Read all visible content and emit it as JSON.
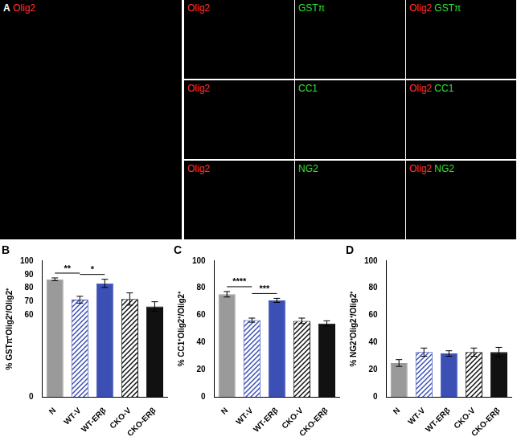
{
  "panel_a": {
    "label": "A",
    "overview": "Olig2",
    "rows": [
      [
        "Olig2",
        "GSTπ"
      ],
      [
        "Olig2",
        "CC1"
      ],
      [
        "Olig2",
        "NG2"
      ]
    ]
  },
  "chart_data": [
    {
      "type": "bar",
      "title": "B",
      "ylabel": "% GSTπ⁺Olig2⁺/Olig2⁺",
      "categories": [
        "N",
        "WT-V",
        "WT-ERβ",
        "CKO-V",
        "CKO-ERβ"
      ],
      "values": [
        86.5,
        71.5,
        83.5,
        72,
        66.5
      ],
      "errors": [
        1,
        2.5,
        3,
        4.5,
        3.5
      ],
      "colors": [
        "#9a9a9a",
        "#3b4fb5",
        "#3b4fb5",
        "#111111",
        "#111111"
      ],
      "annotations": [
        {
          "text": "**",
          "between": [
            "N",
            "WT-V"
          ]
        },
        {
          "text": "*",
          "between": [
            "WT-V",
            "WT-ERβ"
          ]
        }
      ],
      "ylim": [
        0,
        100
      ],
      "yticks": [
        0,
        60,
        70,
        80,
        90,
        100
      ],
      "grid": false
    },
    {
      "type": "bar",
      "title": "C",
      "ylabel": "% CC1⁺Olig2⁺/Olig2⁺",
      "categories": [
        "N",
        "WT-V",
        "WT-ERβ",
        "CKO-V",
        "CKO-ERβ"
      ],
      "values": [
        75.5,
        56.5,
        71,
        56,
        54
      ],
      "errors": [
        2,
        1.5,
        1.5,
        2,
        2
      ],
      "colors": [
        "#9a9a9a",
        "#3b4fb5",
        "#3b4fb5",
        "#111111",
        "#111111"
      ],
      "annotations": [
        {
          "text": "****",
          "between": [
            "N",
            "WT-V"
          ]
        },
        {
          "text": "***",
          "between": [
            "WT-V",
            "WT-ERβ"
          ]
        }
      ],
      "ylim": [
        0,
        100
      ],
      "yticks": [
        0,
        20,
        40,
        60,
        80,
        100
      ],
      "grid": false
    },
    {
      "type": "bar",
      "title": "D",
      "ylabel": "% NG2⁺Olig2⁺/Olig2⁺",
      "categories": [
        "N",
        "WT-V",
        "WT-ERβ",
        "CKO-V",
        "CKO-ERβ"
      ],
      "values": [
        25,
        33,
        32,
        33,
        33
      ],
      "errors": [
        2.5,
        3,
        2,
        3,
        3.5
      ],
      "colors": [
        "#9a9a9a",
        "#3b4fb5",
        "#3b4fb5",
        "#111111",
        "#111111"
      ],
      "annotations": [],
      "ylim": [
        0,
        100
      ],
      "yticks": [
        0,
        20,
        40,
        60,
        80,
        100
      ],
      "grid": false
    }
  ]
}
